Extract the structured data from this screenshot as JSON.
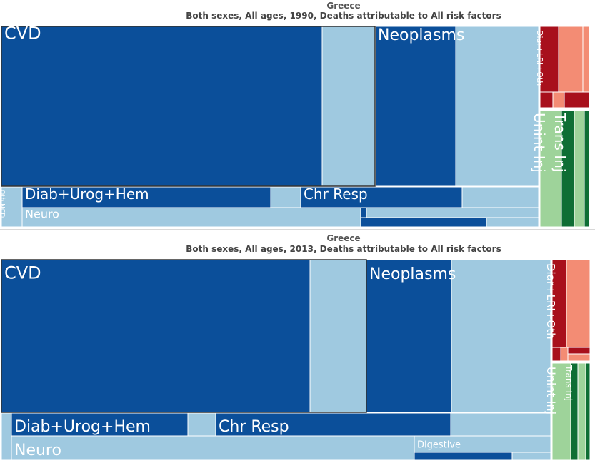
{
  "panels": [
    {
      "title": "Greece",
      "subtitle": "Both sexes, All ages, 1990, Deaths attributable to All risk factors",
      "chart_data": {
        "type": "treemap",
        "colors": {
          "ncd_dark": "#0b4f9a",
          "ncd_light": "#9fc9e0",
          "comm_dark": "#a8101c",
          "comm_light": "#f38c74",
          "inj_dark": "#0e6e34",
          "inj_light": "#9ed39a"
        },
        "labels": [
          {
            "name": "cvd",
            "text": "CVD"
          },
          {
            "name": "neoplasms",
            "text": "Neoplasms"
          },
          {
            "name": "diab",
            "text": "Diab+Urog+Hem"
          },
          {
            "name": "chr-resp",
            "text": "Chr Resp"
          },
          {
            "name": "neuro",
            "text": "Neuro"
          },
          {
            "name": "oth-ncd",
            "text": "Oth NCD"
          },
          {
            "name": "diar",
            "text": "Diar+LRI+Oth"
          },
          {
            "name": "unint-inj",
            "text": "Unint Inj"
          },
          {
            "name": "trans-inj",
            "text": "Trans Inj"
          }
        ]
      }
    },
    {
      "title": "Greece",
      "subtitle": "Both sexes, All ages, 2013, Deaths attributable to All risk factors",
      "chart_data": {
        "type": "treemap",
        "colors": {
          "ncd_dark": "#0b4f9a",
          "ncd_light": "#9fc9e0",
          "comm_dark": "#a8101c",
          "comm_light": "#f38c74",
          "inj_dark": "#0e6e34",
          "inj_light": "#9ed39a"
        },
        "labels": [
          {
            "name": "cvd",
            "text": "CVD"
          },
          {
            "name": "neoplasms",
            "text": "Neoplasms"
          },
          {
            "name": "diab",
            "text": "Diab+Urog+Hem"
          },
          {
            "name": "chr-resp",
            "text": "Chr Resp"
          },
          {
            "name": "neuro",
            "text": "Neuro"
          },
          {
            "name": "digestive",
            "text": "Digestive"
          },
          {
            "name": "diar",
            "text": "Diar+LRI+Oth"
          },
          {
            "name": "unint-inj",
            "text": "Unint Inj"
          },
          {
            "name": "trans-inj",
            "text": "Trans Inj"
          }
        ]
      }
    }
  ]
}
